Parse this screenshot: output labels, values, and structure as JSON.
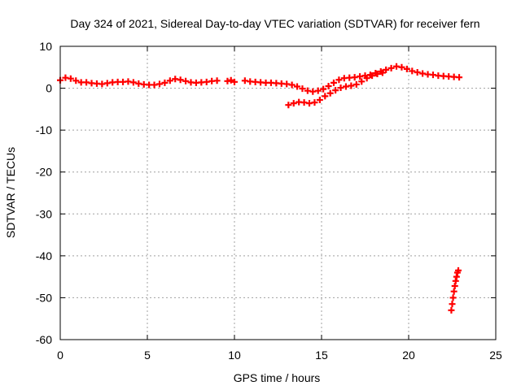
{
  "chart_data": {
    "type": "scatter",
    "title": "Day 324 of 2021, Sidereal Day-to-day VTEC variation (SDTVAR) for receiver fern",
    "xlabel": "GPS time / hours",
    "ylabel": "SDTVAR / TECUs",
    "xlim": [
      0,
      25
    ],
    "ylim": [
      -60,
      10
    ],
    "x_ticks": [
      0,
      5,
      10,
      15,
      20,
      25
    ],
    "y_ticks": [
      10,
      0,
      -10,
      -20,
      -30,
      -40,
      -50,
      -60
    ],
    "x_tick_labels": [
      "0",
      "5",
      "10",
      "15",
      "20",
      "25"
    ],
    "y_tick_labels": [
      "10",
      "0",
      "-10",
      "-20",
      "-30",
      "-40",
      "-50",
      "-60"
    ],
    "grid": true,
    "marker": "+",
    "series": [
      {
        "name": "main-trace",
        "color": "#ff0000",
        "points": [
          [
            0.0,
            1.9
          ],
          [
            0.3,
            2.5
          ],
          [
            0.6,
            2.3
          ],
          [
            0.9,
            1.8
          ],
          [
            1.2,
            1.4
          ],
          [
            1.5,
            1.4
          ],
          [
            1.8,
            1.2
          ],
          [
            2.1,
            1.1
          ],
          [
            2.4,
            1.0
          ],
          [
            2.7,
            1.2
          ],
          [
            3.0,
            1.4
          ],
          [
            3.3,
            1.5
          ],
          [
            3.6,
            1.5
          ],
          [
            3.9,
            1.6
          ],
          [
            4.2,
            1.4
          ],
          [
            4.5,
            1.1
          ],
          [
            4.8,
            0.9
          ],
          [
            5.1,
            0.8
          ],
          [
            5.4,
            0.8
          ],
          [
            5.7,
            1.0
          ],
          [
            6.0,
            1.3
          ],
          [
            6.3,
            1.8
          ],
          [
            6.6,
            2.2
          ],
          [
            6.9,
            2.0
          ],
          [
            7.2,
            1.7
          ],
          [
            7.5,
            1.4
          ],
          [
            7.8,
            1.3
          ],
          [
            8.1,
            1.4
          ],
          [
            8.4,
            1.5
          ],
          [
            8.7,
            1.7
          ],
          [
            9.0,
            1.8
          ],
          [
            9.6,
            1.7
          ],
          [
            9.8,
            1.9
          ],
          [
            10.0,
            1.5
          ],
          [
            10.6,
            1.8
          ],
          [
            10.9,
            1.6
          ],
          [
            11.2,
            1.5
          ],
          [
            11.5,
            1.4
          ],
          [
            11.8,
            1.3
          ],
          [
            12.1,
            1.3
          ],
          [
            12.4,
            1.2
          ],
          [
            12.7,
            1.1
          ],
          [
            13.0,
            1.0
          ],
          [
            13.3,
            0.8
          ],
          [
            13.6,
            0.4
          ],
          [
            13.9,
            -0.1
          ],
          [
            14.2,
            -0.6
          ],
          [
            14.5,
            -0.8
          ],
          [
            14.8,
            -0.6
          ],
          [
            15.1,
            -0.2
          ],
          [
            15.4,
            0.5
          ],
          [
            15.7,
            1.3
          ],
          [
            16.0,
            2.0
          ],
          [
            16.3,
            2.4
          ],
          [
            16.6,
            2.5
          ],
          [
            16.9,
            2.6
          ],
          [
            17.2,
            2.8
          ],
          [
            17.5,
            3.0
          ],
          [
            17.8,
            3.2
          ],
          [
            18.1,
            3.6
          ],
          [
            18.4,
            4.0
          ],
          [
            18.7,
            4.4
          ],
          [
            19.0,
            4.8
          ],
          [
            19.3,
            5.2
          ],
          [
            19.6,
            5.0
          ],
          [
            19.9,
            4.6
          ],
          [
            20.2,
            4.1
          ],
          [
            20.5,
            3.8
          ],
          [
            20.8,
            3.5
          ],
          [
            21.1,
            3.3
          ],
          [
            21.4,
            3.2
          ],
          [
            21.7,
            3.0
          ],
          [
            22.0,
            2.9
          ],
          [
            22.3,
            2.8
          ],
          [
            22.6,
            2.7
          ],
          [
            22.9,
            2.6
          ]
        ]
      },
      {
        "name": "branch-trace",
        "color": "#ff0000",
        "points": [
          [
            13.1,
            -4.0
          ],
          [
            13.4,
            -3.6
          ],
          [
            13.7,
            -3.3
          ],
          [
            14.0,
            -3.4
          ],
          [
            14.3,
            -3.6
          ],
          [
            14.6,
            -3.4
          ],
          [
            14.9,
            -2.8
          ],
          [
            15.2,
            -1.9
          ],
          [
            15.5,
            -1.2
          ],
          [
            15.8,
            -0.5
          ],
          [
            16.1,
            0.1
          ],
          [
            16.4,
            0.4
          ],
          [
            16.7,
            0.6
          ],
          [
            17.0,
            0.9
          ],
          [
            17.3,
            1.6
          ],
          [
            17.6,
            2.4
          ],
          [
            17.9,
            3.0
          ],
          [
            18.2,
            3.4
          ],
          [
            18.5,
            3.7
          ]
        ]
      },
      {
        "name": "drop-trace",
        "color": "#ff0000",
        "points": [
          [
            22.45,
            -53.0
          ],
          [
            22.5,
            -51.5
          ],
          [
            22.55,
            -50.0
          ],
          [
            22.6,
            -48.5
          ],
          [
            22.65,
            -47.2
          ],
          [
            22.7,
            -46.0
          ],
          [
            22.75,
            -45.0
          ],
          [
            22.8,
            -44.0
          ],
          [
            22.85,
            -43.5
          ]
        ]
      }
    ]
  }
}
